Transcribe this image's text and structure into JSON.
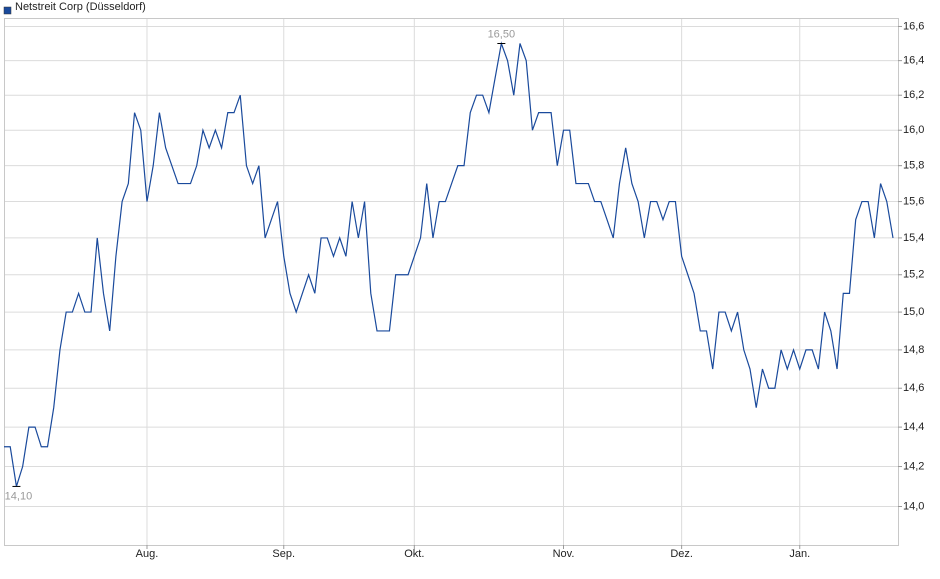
{
  "chart_data": {
    "type": "line",
    "log_scale": true,
    "grid": true,
    "categories": [
      null,
      null,
      null,
      null,
      null,
      null,
      null,
      null,
      null,
      null,
      null,
      null,
      null,
      null,
      null,
      null,
      null,
      null,
      null,
      null,
      null,
      null,
      null,
      "Aug.",
      null,
      null,
      null,
      null,
      null,
      null,
      null,
      null,
      null,
      null,
      null,
      null,
      null,
      null,
      null,
      null,
      null,
      null,
      null,
      null,
      null,
      "Sep.",
      null,
      null,
      null,
      null,
      null,
      null,
      null,
      null,
      null,
      null,
      null,
      null,
      null,
      null,
      null,
      null,
      null,
      null,
      null,
      null,
      "Okt.",
      null,
      null,
      null,
      null,
      null,
      null,
      null,
      null,
      null,
      null,
      null,
      null,
      null,
      null,
      null,
      null,
      null,
      null,
      null,
      null,
      null,
      null,
      null,
      "Nov.",
      null,
      null,
      null,
      null,
      null,
      null,
      null,
      null,
      null,
      null,
      null,
      null,
      null,
      null,
      null,
      null,
      null,
      null,
      "Dez.",
      null,
      null,
      null,
      null,
      null,
      null,
      null,
      null,
      null,
      null,
      null,
      null,
      null,
      null,
      null,
      null,
      null,
      null,
      "Jan.",
      null,
      null,
      null,
      null,
      null,
      null,
      null,
      null,
      null,
      null,
      null,
      null,
      null,
      null,
      null
    ],
    "series": [
      {
        "name": "Netstreit Corp (Düsseldorf)",
        "color": "#1a4a9c",
        "values": [
          14.3,
          14.3,
          14.1,
          14.2,
          14.4,
          14.4,
          14.3,
          14.3,
          14.5,
          14.8,
          15.0,
          15.0,
          15.1,
          15.0,
          15.0,
          15.4,
          15.1,
          14.9,
          15.3,
          15.6,
          15.7,
          16.1,
          16.0,
          15.6,
          15.8,
          16.1,
          15.9,
          15.8,
          15.7,
          15.7,
          15.7,
          15.8,
          16.0,
          15.9,
          16.0,
          15.9,
          16.1,
          16.1,
          16.2,
          15.8,
          15.7,
          15.8,
          15.4,
          15.5,
          15.6,
          15.3,
          15.1,
          15.0,
          15.1,
          15.2,
          15.1,
          15.4,
          15.4,
          15.3,
          15.4,
          15.3,
          15.6,
          15.4,
          15.6,
          15.1,
          14.9,
          14.9,
          14.9,
          15.2,
          15.2,
          15.2,
          15.3,
          15.4,
          15.7,
          15.4,
          15.6,
          15.6,
          15.7,
          15.8,
          15.8,
          16.1,
          16.2,
          16.2,
          16.1,
          16.3,
          16.5,
          16.4,
          16.2,
          16.5,
          16.4,
          16.0,
          16.1,
          16.1,
          16.1,
          15.8,
          16.0,
          16.0,
          15.7,
          15.7,
          15.7,
          15.6,
          15.6,
          15.5,
          15.4,
          15.7,
          15.9,
          15.7,
          15.6,
          15.4,
          15.6,
          15.6,
          15.5,
          15.6,
          15.6,
          15.3,
          15.2,
          15.1,
          14.9,
          14.9,
          14.7,
          15.0,
          15.0,
          14.9,
          15.0,
          14.8,
          14.7,
          14.5,
          14.7,
          14.6,
          14.6,
          14.8,
          14.7,
          14.8,
          14.7,
          14.8,
          14.8,
          14.7,
          15.0,
          14.9,
          14.7,
          15.1,
          15.1,
          15.5,
          15.6,
          15.6,
          15.4,
          15.7,
          15.6,
          15.4
        ]
      }
    ],
    "min_label": "14,10",
    "max_label": "16,50",
    "ylim": [
      13.81,
      16.65
    ],
    "yticks": [
      {
        "value": 14.0,
        "label": "14,0"
      },
      {
        "value": 14.2,
        "label": "14,2"
      },
      {
        "value": 14.4,
        "label": "14,4"
      },
      {
        "value": 14.6,
        "label": "14,6"
      },
      {
        "value": 14.8,
        "label": "14,8"
      },
      {
        "value": 15.0,
        "label": "15,0"
      },
      {
        "value": 15.2,
        "label": "15,2"
      },
      {
        "value": 15.4,
        "label": "15,4"
      },
      {
        "value": 15.6,
        "label": "15,6"
      },
      {
        "value": 15.8,
        "label": "15,8"
      },
      {
        "value": 16.0,
        "label": "16,0"
      },
      {
        "value": 16.2,
        "label": "16,2"
      },
      {
        "value": 16.4,
        "label": "16,4"
      },
      {
        "value": 16.6,
        "label": "16,6"
      }
    ]
  }
}
